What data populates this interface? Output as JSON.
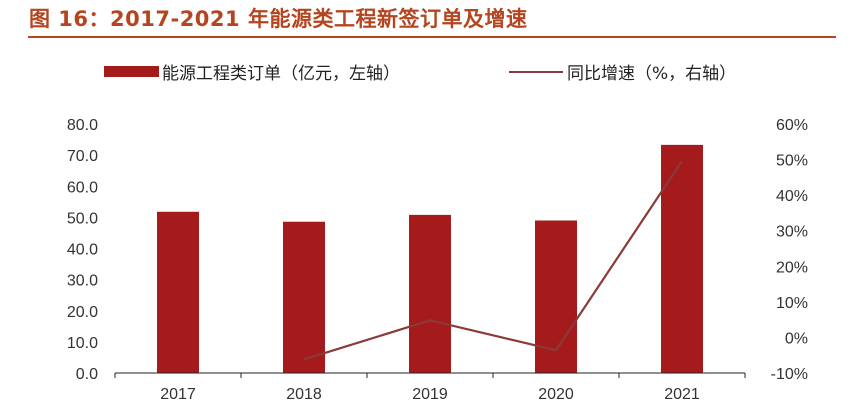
{
  "title": "图 16：2017-2021 年能源类工程新签订单及增速",
  "colors": {
    "title": "#b5451f",
    "bar": "#a51b1b",
    "line": "#8b3a3a",
    "axis": "#222222"
  },
  "chart_data": {
    "type": "bar",
    "categories": [
      "2017",
      "2018",
      "2019",
      "2020",
      "2021"
    ],
    "series": [
      {
        "name": "能源工程类订单（亿元，左轴）",
        "type": "bar",
        "axis": "left",
        "values": [
          51.8,
          48.6,
          50.8,
          49.0,
          73.3
        ]
      },
      {
        "name": "同比增速（%，右轴）",
        "type": "line",
        "axis": "right",
        "values": [
          null,
          -6.2,
          4.8,
          -3.6,
          49.6
        ]
      }
    ],
    "ylim_left": [
      0,
      80
    ],
    "ylim_right": [
      -10,
      60
    ],
    "yticks_left": [
      "0.0",
      "10.0",
      "20.0",
      "30.0",
      "40.0",
      "50.0",
      "60.0",
      "70.0",
      "80.0"
    ],
    "yticks_right": [
      "-10%",
      "0%",
      "10%",
      "20%",
      "30%",
      "40%",
      "50%",
      "60%"
    ],
    "legend": "top",
    "grid": false
  }
}
